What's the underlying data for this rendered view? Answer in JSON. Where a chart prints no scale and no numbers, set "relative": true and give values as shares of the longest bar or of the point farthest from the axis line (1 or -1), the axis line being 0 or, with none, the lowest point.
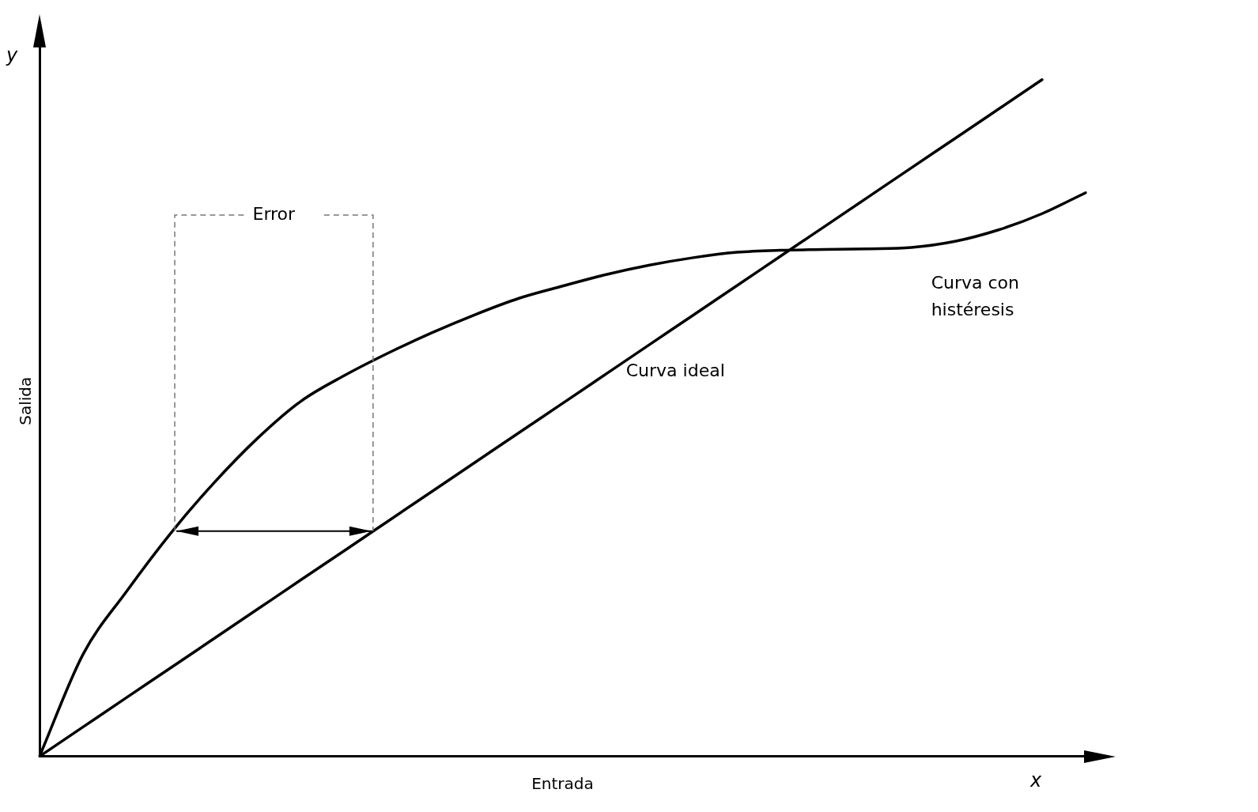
{
  "chart_data": {
    "type": "line",
    "relative": true,
    "xlabel": "Entrada",
    "ylabel": "Salida",
    "categories": [
      null,
      null,
      null,
      null,
      null,
      null,
      null,
      null,
      null,
      null,
      null,
      null,
      null,
      null,
      null,
      null,
      null,
      null,
      null,
      null,
      null,
      null,
      null,
      null,
      null
    ],
    "series": [
      {
        "name": "Curva con histéresis",
        "color": "#000000",
        "values": [
          0,
          0.151,
          0.244,
          0.329,
          0.404,
          0.47,
          0.525,
          0.563,
          0.596,
          0.626,
          0.653,
          0.677,
          0.695,
          0.712,
          0.726,
          0.737,
          0.745,
          0.748,
          0.749,
          0.75,
          0.752,
          0.761,
          0.778,
          0.802,
          0.833
        ]
      },
      {
        "name": "Curva ideal",
        "color": "#000000",
        "values": [
          0,
          0.0435,
          0.087,
          0.1304,
          0.1739,
          0.2174,
          0.2609,
          0.3043,
          0.3478,
          0.3913,
          0.4348,
          0.4783,
          0.5217,
          0.5652,
          0.6087,
          0.6522,
          0.6957,
          0.7391,
          0.7826,
          0.8261,
          0.8696,
          0.913,
          0.9565,
          1,
          null
        ]
      }
    ],
    "annotations": [
      "Error",
      "x",
      "y"
    ],
    "grid": false,
    "legend": false,
    "marker": "none",
    "line_style": "solid"
  }
}
